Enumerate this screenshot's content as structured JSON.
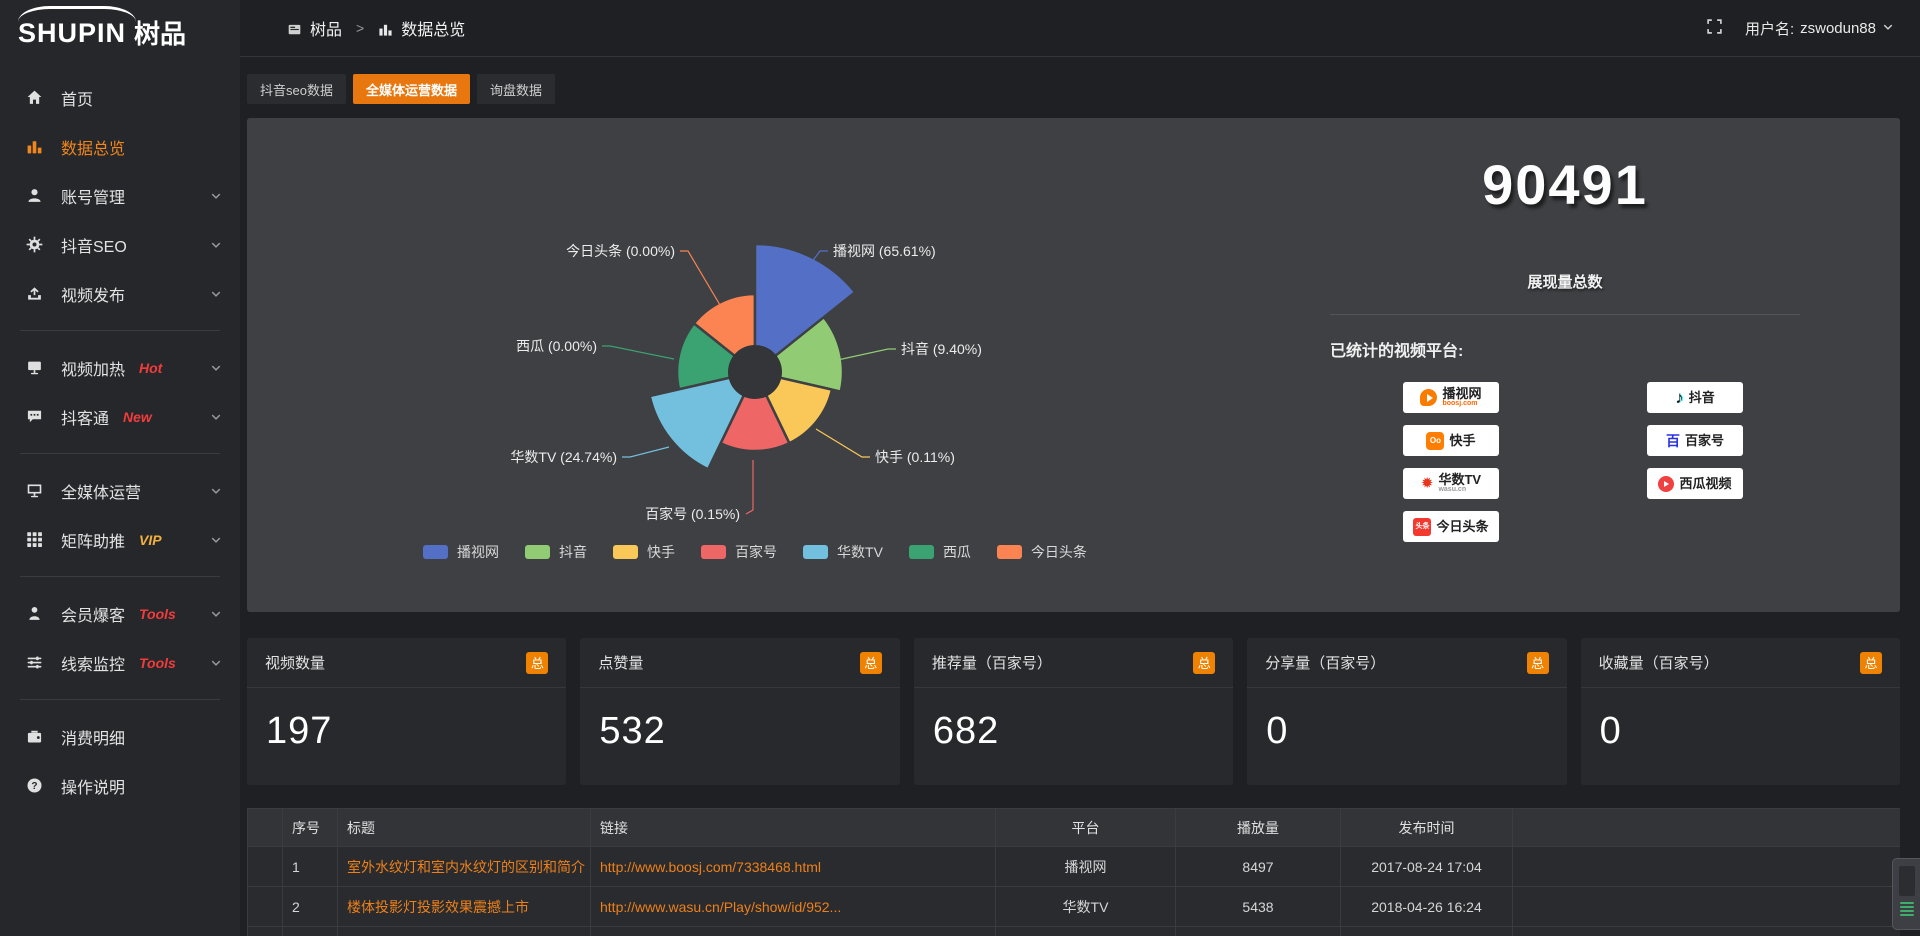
{
  "header": {
    "logo_text": "SHUPIN",
    "logo_cn": "树品",
    "breadcrumb": [
      {
        "icon": "doc-icon",
        "label": "树品"
      },
      {
        "icon": "bars-icon",
        "label": "数据总览"
      }
    ],
    "breadcrumb_sep": ">",
    "username_label": "用户名:",
    "username": "zswodun88"
  },
  "sidebar": {
    "items": [
      {
        "icon": "home",
        "label": "首页"
      },
      {
        "icon": "chart",
        "label": "数据总览",
        "active": true
      },
      {
        "icon": "user",
        "label": "账号管理",
        "chevron": true
      },
      {
        "icon": "gear",
        "label": "抖音SEO",
        "chevron": true
      },
      {
        "icon": "publish",
        "label": "视频发布",
        "chevron": true
      },
      {
        "divider": true
      },
      {
        "icon": "screen",
        "label": "视频加热",
        "tag": "Hot",
        "tag_color": "red",
        "chevron": true
      },
      {
        "icon": "chat",
        "label": "抖客通",
        "tag": "New",
        "tag_color": "red",
        "chevron": true
      },
      {
        "divider": true
      },
      {
        "icon": "monitor",
        "label": "全媒体运营",
        "chevron": true
      },
      {
        "icon": "grid",
        "label": "矩阵助推",
        "tag": "VIP",
        "tag_color": "yellow",
        "chevron": true
      },
      {
        "divider": true
      },
      {
        "icon": "person",
        "label": "会员爆客",
        "tag": "Tools",
        "tag_color": "red",
        "chevron": true
      },
      {
        "icon": "sliders",
        "label": "线索监控",
        "tag": "Tools",
        "tag_color": "red",
        "chevron": true
      },
      {
        "divider": true
      },
      {
        "icon": "wallet",
        "label": "消费明细"
      },
      {
        "icon": "question",
        "label": "操作说明"
      }
    ]
  },
  "tabs": [
    {
      "label": "抖音seo数据",
      "active": false
    },
    {
      "label": "全媒体运营数据",
      "active": true
    },
    {
      "label": "询盘数据",
      "active": false
    }
  ],
  "chart_data": {
    "type": "pie",
    "style": "nightingale-rose",
    "title": "",
    "label_format": "{name} ({pct})",
    "legend_position": "bottom-center",
    "items": [
      {
        "name": "播视网",
        "value": 65.61,
        "pct": "65.61%",
        "color": "#5470c6"
      },
      {
        "name": "抖音",
        "value": 9.4,
        "pct": "9.40%",
        "color": "#91cc75"
      },
      {
        "name": "快手",
        "value": 0.11,
        "pct": "0.11%",
        "color": "#fac858"
      },
      {
        "name": "百家号",
        "value": 0.15,
        "pct": "0.15%",
        "color": "#ee6666"
      },
      {
        "name": "华数TV",
        "value": 24.74,
        "pct": "24.74%",
        "color": "#73c0de"
      },
      {
        "name": "西瓜",
        "value": 0.0,
        "pct": "0.00%",
        "color": "#3ba272"
      },
      {
        "name": "今日头条",
        "value": 0.0,
        "pct": "0.00%",
        "color": "#fc8452"
      }
    ],
    "legend": [
      "播视网",
      "抖音",
      "快手",
      "百家号",
      "华数TV",
      "西瓜",
      "今日头条"
    ]
  },
  "summary": {
    "total_value": "90491",
    "total_label": "展现量总数",
    "platforms_title": "已统计的视频平台:",
    "platform_columns": [
      [
        {
          "name": "播视网",
          "sub": "boosj.com",
          "logo": "boosj"
        },
        {
          "name": "快手",
          "logo": "kuaishou"
        },
        {
          "name": "华数TV",
          "sub": "wasu.cn",
          "logo": "wasu"
        },
        {
          "name": "今日头条",
          "logo": "toutiao"
        }
      ],
      [
        {
          "name": "抖音",
          "logo": "douyin"
        },
        {
          "name": "百家号",
          "logo": "baijia"
        },
        {
          "name": "西瓜视频",
          "logo": "xigua"
        }
      ]
    ]
  },
  "stat_cards": [
    {
      "label": "视频数量",
      "badge": "总",
      "value": "197"
    },
    {
      "label": "点赞量",
      "badge": "总",
      "value": "532"
    },
    {
      "label": "推荐量（百家号）",
      "badge": "总",
      "value": "682"
    },
    {
      "label": "分享量（百家号）",
      "badge": "总",
      "value": "0"
    },
    {
      "label": "收藏量（百家号）",
      "badge": "总",
      "value": "0"
    }
  ],
  "table": {
    "columns": [
      "",
      "序号",
      "标题",
      "链接",
      "平台",
      "播放量",
      "发布时间"
    ],
    "rows": [
      {
        "no": "1",
        "title": "室外水纹灯和室内水纹灯的区别和简介",
        "link": "http://www.boosj.com/7338468.html",
        "platform": "播视网",
        "plays": "8497",
        "time": "2017-08-24 17:04"
      },
      {
        "no": "2",
        "title": "楼体投影灯投影效果震撼上市",
        "link": "http://www.wasu.cn/Play/show/id/952...",
        "platform": "华数TV",
        "plays": "5438",
        "time": "2018-04-26 16:24"
      }
    ],
    "partial_third_row": true
  },
  "colors": {
    "accent": "#e8770f",
    "sidebar_active": "#f0861c",
    "hot_tag": "#f23c3c",
    "vip_tag": "#f2b13c",
    "link_text": "#ee8019",
    "badge_bg": "#ef8200"
  }
}
